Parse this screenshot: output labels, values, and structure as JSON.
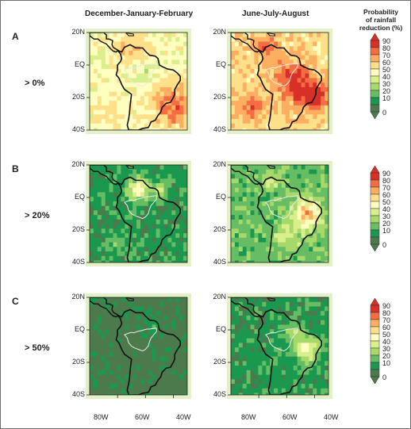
{
  "column_titles": [
    "December-January-February",
    "June-July-August"
  ],
  "rows": [
    {
      "letter": "A",
      "threshold": "> 0%"
    },
    {
      "letter": "B",
      "threshold": "> 20%"
    },
    {
      "letter": "C",
      "threshold": "> 50%"
    }
  ],
  "lat_labels": [
    "20N",
    "EQ",
    "20S",
    "40S"
  ],
  "lon_labels": [
    "80W",
    "60W",
    "40W"
  ],
  "legend": {
    "title_lines": [
      "Probability",
      "of rainfall",
      "reduction (%)"
    ],
    "ticks": [
      "90",
      "80",
      "70",
      "60",
      "50",
      "40",
      "30",
      "20",
      "10",
      "0"
    ],
    "colors": [
      "#d73027",
      "#f46d43",
      "#fdae61",
      "#fee08b",
      "#ffffbf",
      "#d9ef8b",
      "#a6d96a",
      "#66bd63",
      "#1a9850",
      "#4d7a4d"
    ]
  },
  "panel_fields": [
    {
      "base": 5,
      "blobs": [
        [
          -70,
          10,
          2,
          3,
          10
        ],
        [
          -40,
          -25,
          3,
          3,
          15
        ],
        [
          -85,
          -30,
          1,
          3,
          10
        ],
        [
          -60,
          -5,
          -1,
          2,
          8
        ]
      ]
    },
    {
      "base": 6,
      "blobs": [
        [
          -55,
          -10,
          3,
          3,
          14
        ],
        [
          -85,
          -25,
          2,
          3,
          10
        ],
        [
          -40,
          -20,
          3,
          3,
          10
        ],
        [
          -75,
          12,
          2,
          3,
          8
        ]
      ]
    },
    {
      "base": 1,
      "blobs": [
        [
          -65,
          5,
          4,
          3,
          8
        ],
        [
          -50,
          5,
          2,
          2,
          6
        ],
        [
          -80,
          -30,
          1,
          2,
          8
        ]
      ]
    },
    {
      "base": 2,
      "blobs": [
        [
          -45,
          -10,
          5,
          3,
          10
        ],
        [
          -60,
          -25,
          2,
          3,
          10
        ],
        [
          -70,
          10,
          2,
          2,
          6
        ]
      ]
    },
    {
      "base": 0,
      "blobs": [
        [
          -55,
          3,
          1,
          2,
          6
        ],
        [
          -75,
          -38,
          1,
          2,
          4
        ]
      ]
    },
    {
      "base": 1,
      "blobs": [
        [
          -45,
          -12,
          4,
          3,
          9
        ],
        [
          -55,
          0,
          2,
          2,
          6
        ]
      ]
    }
  ]
}
